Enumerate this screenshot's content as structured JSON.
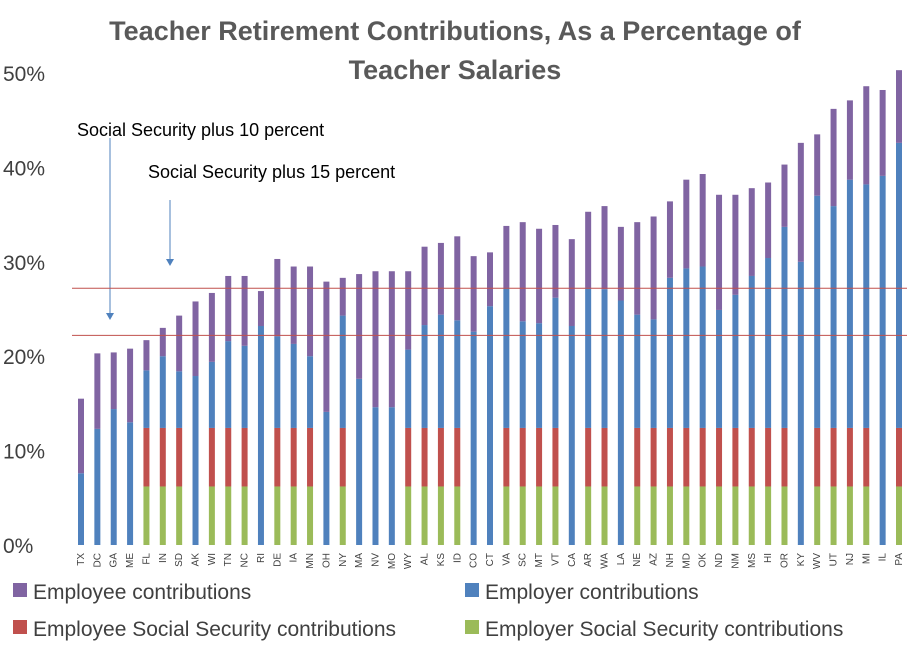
{
  "chart_data": {
    "type": "bar",
    "stacked": true,
    "title": "Teacher Retirement Contributions, As a Percentage of Teacher Salaries",
    "xlabel": "",
    "ylabel": "",
    "ylim": [
      0,
      50
    ],
    "yticks": [
      "0%",
      "10%",
      "20%",
      "30%",
      "40%",
      "50%"
    ],
    "categories": [
      "TX",
      "DC",
      "GA",
      "ME",
      "FL",
      "IN",
      "SD",
      "AK",
      "WI",
      "TN",
      "NC",
      "RI",
      "DE",
      "IA",
      "MN",
      "OH",
      "NY",
      "MA",
      "NV",
      "MO",
      "WY",
      "AL",
      "KS",
      "ID",
      "CO",
      "CT",
      "VA",
      "SC",
      "MT",
      "VT",
      "CA",
      "AR",
      "WA",
      "LA",
      "NE",
      "AZ",
      "NH",
      "MD",
      "OK",
      "ND",
      "NM",
      "MS",
      "HI",
      "OR",
      "KY",
      "WV",
      "UT",
      "NJ",
      "MI",
      "IL",
      "PA"
    ],
    "series": [
      {
        "name": "Employer Social Security contributions",
        "color": "#9BBB59",
        "values": [
          0,
          0,
          0,
          0,
          6.2,
          6.2,
          6.2,
          0,
          6.2,
          6.2,
          6.2,
          0,
          6.2,
          6.2,
          6.2,
          0,
          6.2,
          0,
          0,
          0,
          6.2,
          6.2,
          6.2,
          6.2,
          0,
          0,
          6.2,
          6.2,
          6.2,
          6.2,
          0,
          6.2,
          6.2,
          0,
          6.2,
          6.2,
          6.2,
          6.2,
          6.2,
          6.2,
          6.2,
          6.2,
          6.2,
          6.2,
          0,
          6.2,
          6.2,
          6.2,
          6.2,
          0,
          6.2
        ]
      },
      {
        "name": "Employee Social Security contributions",
        "color": "#C0504D",
        "values": [
          0,
          0,
          0,
          0,
          6.2,
          6.2,
          6.2,
          0,
          6.2,
          6.2,
          6.2,
          0,
          6.2,
          6.2,
          6.2,
          0,
          6.2,
          0,
          0,
          0,
          6.2,
          6.2,
          6.2,
          6.2,
          0,
          0,
          6.2,
          6.2,
          6.2,
          6.2,
          0,
          6.2,
          6.2,
          0,
          6.2,
          6.2,
          6.2,
          6.2,
          6.2,
          6.2,
          6.2,
          6.2,
          6.2,
          6.2,
          0,
          6.2,
          6.2,
          6.2,
          6.2,
          0,
          6.2
        ]
      },
      {
        "name": "Employer contributions",
        "color": "#4F81BD",
        "values": [
          7.6,
          12.3,
          14.4,
          13.0,
          6.1,
          7.6,
          6.0,
          17.9,
          7.0,
          9.2,
          8.7,
          23.2,
          9.7,
          8.9,
          7.6,
          14.1,
          11.9,
          17.6,
          14.6,
          14.6,
          8.3,
          10.9,
          12.0,
          11.4,
          22.6,
          25.3,
          14.8,
          11.3,
          11.1,
          13.8,
          23.2,
          14.8,
          14.7,
          25.9,
          12.0,
          11.5,
          15.9,
          16.9,
          17.1,
          12.5,
          14.1,
          16.1,
          18.0,
          21.3,
          30.0,
          24.6,
          23.5,
          26.3,
          25.8,
          39.1,
          30.2
        ]
      },
      {
        "name": "Employee contributions",
        "color": "#8064A2",
        "values": [
          7.9,
          8.0,
          6.0,
          7.8,
          3.2,
          3.0,
          5.9,
          7.9,
          7.3,
          6.9,
          7.4,
          3.7,
          8.2,
          8.2,
          9.5,
          13.8,
          4.0,
          11.1,
          14.4,
          14.4,
          8.3,
          8.3,
          7.6,
          8.9,
          8.0,
          5.7,
          6.6,
          10.5,
          10.0,
          7.7,
          9.2,
          8.1,
          8.8,
          7.8,
          9.8,
          10.9,
          8.1,
          9.4,
          9.8,
          12.2,
          10.6,
          9.3,
          8.0,
          6.6,
          12.6,
          6.5,
          10.3,
          8.4,
          10.4,
          9.1,
          7.7
        ]
      }
    ],
    "annotations": [
      {
        "text": "Social Security plus 10 percent",
        "value": 22.2
      },
      {
        "text": "Social Security plus 15 percent",
        "value": 27.2
      }
    ],
    "legend_placement": "bottom",
    "grid": false
  }
}
